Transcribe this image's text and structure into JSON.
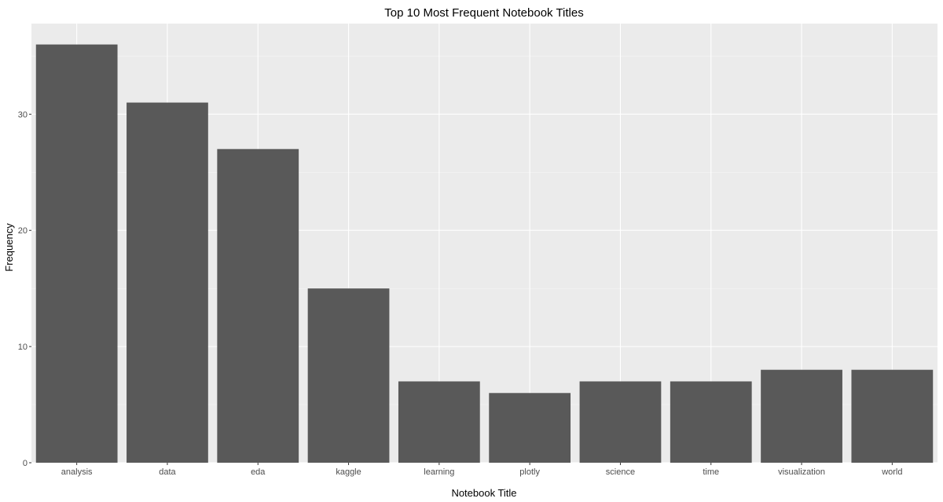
{
  "chart_data": {
    "type": "bar",
    "title": "Top 10 Most Frequent Notebook Titles",
    "xlabel": "Notebook Title",
    "ylabel": "Frequency",
    "categories": [
      "analysis",
      "data",
      "eda",
      "kaggle",
      "learning",
      "plotly",
      "science",
      "time",
      "visualization",
      "world"
    ],
    "values": [
      36,
      31,
      27,
      15,
      7,
      6,
      7,
      7,
      8,
      8
    ],
    "ylim": [
      0,
      37.8
    ],
    "yticks": [
      0,
      10,
      20,
      30
    ],
    "grid": true,
    "legend": "none",
    "colors": {
      "bar": "#595959",
      "panel": "#ebebeb",
      "grid_major": "#ffffff",
      "grid_minor": "#f5f5f5"
    }
  }
}
